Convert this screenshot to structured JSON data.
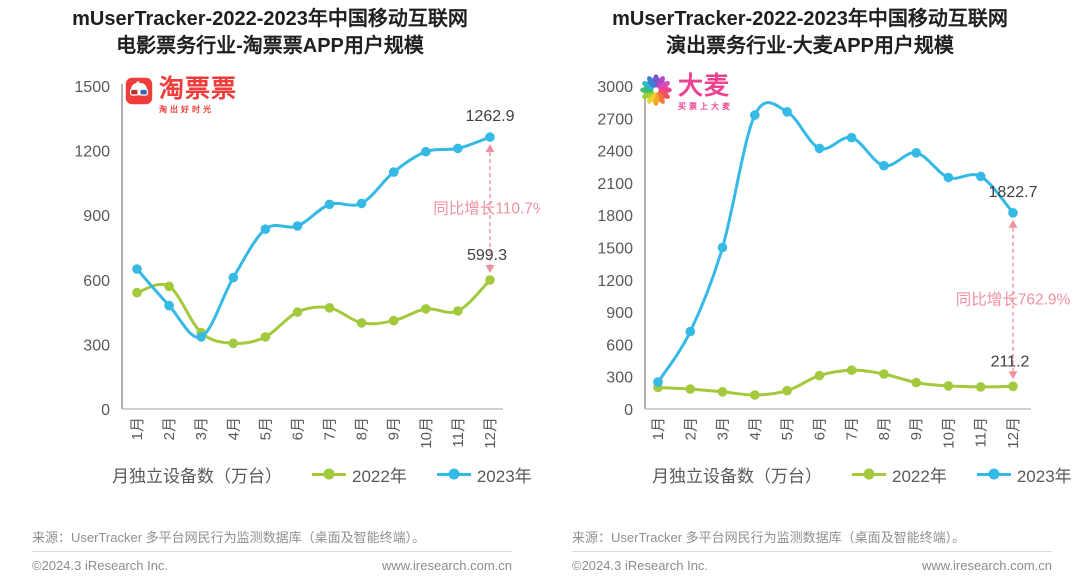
{
  "footer": {
    "source": "来源：UserTracker 多平台网民行为监测数据库（桌面及智能终端）。",
    "copyright": "©2024.3 iResearch Inc.",
    "website": "www.iresearch.com.cn"
  },
  "logos": [
    {
      "name": "淘票票",
      "tagline": "淘出好时光",
      "color": "#EE3D3B"
    },
    {
      "name": "大麦",
      "tagline": "买票上大麦",
      "color": "#ED4192"
    }
  ],
  "chart_data": [
    {
      "type": "line",
      "title": "mUserTracker-2022-2023年中国移动互联网电影票务行业-淘票票APP用户规模",
      "title_lines": [
        "mUserTracker-2022-2023年中国移动互联网",
        "电影票务行业-淘票票APP用户规模"
      ],
      "categories": [
        "1月",
        "2月",
        "3月",
        "4月",
        "5月",
        "6月",
        "7月",
        "8月",
        "9月",
        "10月",
        "11月",
        "12月"
      ],
      "series": [
        {
          "name": "2022年",
          "color": "#A3C93C",
          "values": [
            540,
            570,
            355,
            305,
            335,
            450,
            470,
            400,
            410,
            465,
            455,
            599.3
          ],
          "end_label": "599.3"
        },
        {
          "name": "2023年",
          "color": "#35B9E5",
          "values": [
            650,
            480,
            335,
            610,
            835,
            850,
            950,
            955,
            1100,
            1195,
            1210,
            1262.9
          ],
          "end_label": "1262.9"
        }
      ],
      "ylim": [
        0,
        1500
      ],
      "ytick_step": 300,
      "yticks": [
        "0",
        "300",
        "600",
        "900",
        "1200",
        "1500"
      ],
      "ylabel_note": "月独立设备数（万台）",
      "annotation": {
        "text": "同比增长110.7%",
        "color": "#F0919E"
      },
      "legend_position": "bottom",
      "grid": false
    },
    {
      "type": "line",
      "title": "mUserTracker-2022-2023年中国移动互联网演出票务行业-大麦APP用户规模",
      "title_lines": [
        "mUserTracker-2022-2023年中国移动互联网",
        "演出票务行业-大麦APP用户规模"
      ],
      "categories": [
        "1月",
        "2月",
        "3月",
        "4月",
        "5月",
        "6月",
        "7月",
        "8月",
        "9月",
        "10月",
        "11月",
        "12月"
      ],
      "series": [
        {
          "name": "2022年",
          "color": "#A3C93C",
          "values": [
            200,
            185,
            160,
            130,
            170,
            310,
            360,
            325,
            245,
            215,
            205,
            211.2
          ],
          "end_label": "211.2"
        },
        {
          "name": "2023年",
          "color": "#35B9E5",
          "values": [
            250,
            720,
            1500,
            2730,
            2760,
            2420,
            2520,
            2260,
            2380,
            2150,
            2160,
            1822.7
          ],
          "end_label": "1822.7"
        }
      ],
      "ylim": [
        0,
        3000
      ],
      "ytick_step": 300,
      "yticks": [
        "0",
        "300",
        "600",
        "900",
        "1200",
        "1500",
        "1800",
        "2100",
        "2400",
        "2700",
        "3000"
      ],
      "ylabel_note": "月独立设备数（万台）",
      "annotation": {
        "text": "同比增长762.9%",
        "color": "#F0919E"
      },
      "legend_position": "bottom",
      "grid": false
    }
  ]
}
